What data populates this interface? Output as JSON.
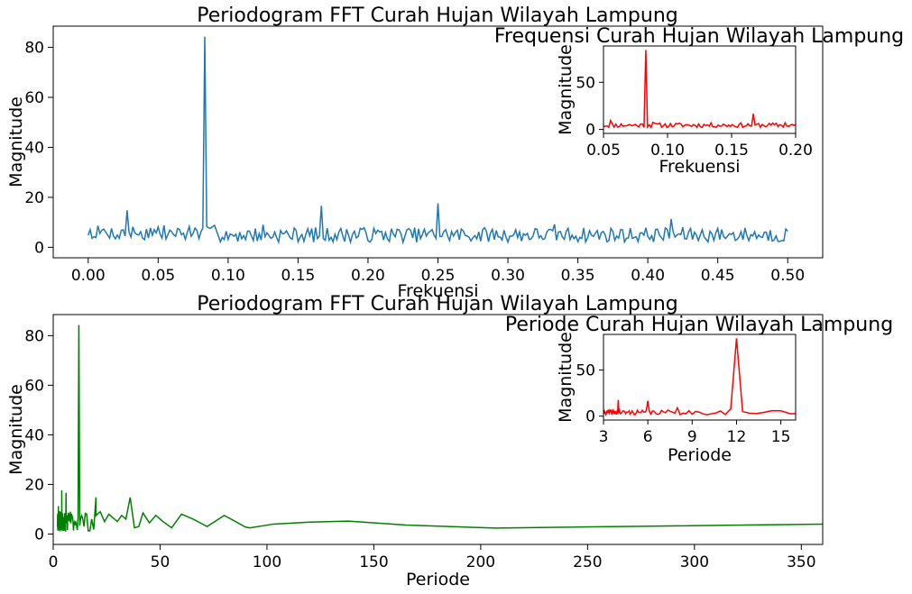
{
  "chart_data": [
    {
      "type": "line",
      "title": "Periodogram FFT Curah Hujan Wilayah Lampung",
      "xlabel": "Frekuensi",
      "ylabel": "Magnitude",
      "xlim": [
        -0.025,
        0.525
      ],
      "ylim": [
        -4.2,
        88.5
      ],
      "xticks": [
        0.0,
        0.05,
        0.1,
        0.15,
        0.2,
        0.25,
        0.3,
        0.35,
        0.4,
        0.45,
        0.5
      ],
      "xtick_labels": [
        "0.00",
        "0.05",
        "0.10",
        "0.15",
        "0.20",
        "0.25",
        "0.30",
        "0.35",
        "0.40",
        "0.45",
        "0.50"
      ],
      "yticks": [
        0,
        20,
        40,
        60,
        80
      ],
      "ytick_labels": [
        "0",
        "20",
        "40",
        "60",
        "80"
      ],
      "grid": false,
      "series": [
        {
          "color": "#1f77b4",
          "x_start": 0.0,
          "x_end": 0.5,
          "n_points": 361,
          "baseline_range": [
            2,
            8
          ],
          "peaks": [
            {
              "x": 0.0833,
              "y": 84.3
            },
            {
              "x": 0.25,
              "y": 17.6
            },
            {
              "x": 0.1667,
              "y": 16.6
            },
            {
              "x": 0.0278,
              "y": 14.8
            },
            {
              "x": 0.4167,
              "y": 11.3
            },
            {
              "x": 0.3333,
              "y": 9.2
            },
            {
              "x": 0.125,
              "y": 9.0
            },
            {
              "x": 0.1944,
              "y": 7.6
            },
            {
              "x": 0.2361,
              "y": 7.4
            }
          ]
        }
      ]
    },
    {
      "type": "line",
      "title": "Frequensi Curah Hujan Wilayah Lampung",
      "xlabel": "Frekuensi",
      "ylabel": "Magnitude",
      "xlim": [
        0.05,
        0.2
      ],
      "ylim": [
        -4.2,
        88.5
      ],
      "xticks": [
        0.05,
        0.1,
        0.15,
        0.2
      ],
      "xtick_labels": [
        "0.05",
        "0.10",
        "0.15",
        "0.20"
      ],
      "yticks": [
        0,
        50
      ],
      "ytick_labels": [
        "0",
        "50"
      ],
      "series": [
        {
          "color": "#ff0000",
          "x_start": 0.05,
          "x_end": 0.2,
          "baseline_range": [
            2,
            7
          ],
          "peaks": [
            {
              "x": 0.0833,
              "y": 84.3
            },
            {
              "x": 0.1667,
              "y": 16.6
            },
            {
              "x": 0.0556,
              "y": 9.5
            },
            {
              "x": 0.0889,
              "y": 7.5
            },
            {
              "x": 0.1917,
              "y": 7.0
            }
          ]
        }
      ]
    },
    {
      "type": "line",
      "title": "Periodogram FFT Curah Hujan Wilayah Lampung",
      "xlabel": "Periode",
      "ylabel": "Magnitude",
      "xlim": [
        0,
        360
      ],
      "ylim": [
        -4.2,
        88.5
      ],
      "xticks": [
        0,
        50,
        100,
        150,
        200,
        250,
        300,
        350
      ],
      "xtick_labels": [
        "0",
        "50",
        "100",
        "150",
        "200",
        "250",
        "300",
        "350"
      ],
      "yticks": [
        0,
        20,
        40,
        60,
        80
      ],
      "ytick_labels": [
        "0",
        "20",
        "40",
        "60",
        "80"
      ],
      "series": [
        {
          "color": "#008000",
          "peaks": [
            {
              "x": 12,
              "y": 84.3
            },
            {
              "x": 4,
              "y": 17.6
            },
            {
              "x": 6,
              "y": 16.6
            },
            {
              "x": 36,
              "y": 14.8
            },
            {
              "x": 2.4,
              "y": 11.3
            },
            {
              "x": 3,
              "y": 9.2
            },
            {
              "x": 8,
              "y": 9.0
            }
          ],
          "tail": [
            {
              "x": 20,
              "y": 7.5
            },
            {
              "x": 22,
              "y": 9.0
            },
            {
              "x": 24,
              "y": 5.0
            },
            {
              "x": 26,
              "y": 8.0
            },
            {
              "x": 28,
              "y": 6.5
            },
            {
              "x": 30,
              "y": 5.0
            },
            {
              "x": 32,
              "y": 7.5
            },
            {
              "x": 34,
              "y": 6.0
            },
            {
              "x": 36,
              "y": 14.8
            },
            {
              "x": 38,
              "y": 2.5
            },
            {
              "x": 40,
              "y": 3.0
            },
            {
              "x": 42,
              "y": 8.5
            },
            {
              "x": 45,
              "y": 4.5
            },
            {
              "x": 48,
              "y": 7.5
            },
            {
              "x": 51.4,
              "y": 5.0
            },
            {
              "x": 55.4,
              "y": 2.5
            },
            {
              "x": 60,
              "y": 8.0
            },
            {
              "x": 65.5,
              "y": 6.0
            },
            {
              "x": 72,
              "y": 3.0
            },
            {
              "x": 80,
              "y": 7.5
            },
            {
              "x": 90,
              "y": 2.8
            },
            {
              "x": 92,
              "y": 2.5
            },
            {
              "x": 103,
              "y": 4.0
            },
            {
              "x": 120,
              "y": 4.8
            },
            {
              "x": 138,
              "y": 5.2
            },
            {
              "x": 165,
              "y": 3.6
            },
            {
              "x": 207,
              "y": 2.4
            },
            {
              "x": 360,
              "y": 4.0
            }
          ]
        }
      ]
    },
    {
      "type": "line",
      "title": "Periode Curah Hujan Wilayah Lampung",
      "xlabel": "Periode",
      "ylabel": "Magnitude",
      "xlim": [
        3,
        16
      ],
      "ylim": [
        -4.2,
        88.5
      ],
      "xticks": [
        3,
        6,
        9,
        12,
        15
      ],
      "xtick_labels": [
        "3",
        "6",
        "9",
        "12",
        "15"
      ],
      "yticks": [
        0,
        50
      ],
      "ytick_labels": [
        "0",
        "50"
      ],
      "series": [
        {
          "color": "#ff0000",
          "peaks": [
            {
              "x": 12,
              "y": 84.3
            },
            {
              "x": 4,
              "y": 17.6
            },
            {
              "x": 6,
              "y": 16.6
            },
            {
              "x": 8,
              "y": 9.0
            },
            {
              "x": 11.5,
              "y": 8.0
            }
          ]
        }
      ]
    }
  ]
}
